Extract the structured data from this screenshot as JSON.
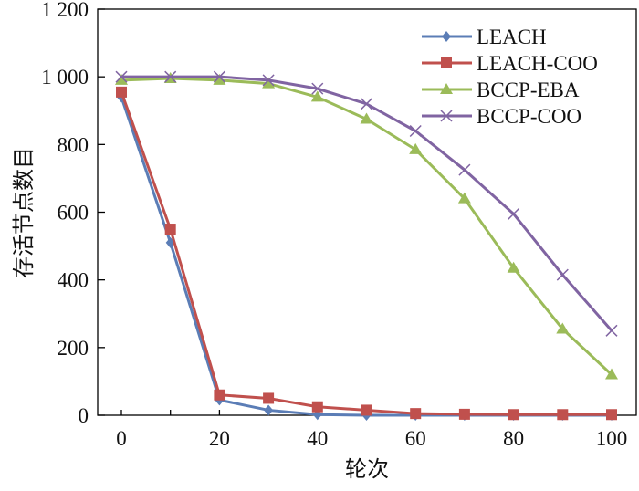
{
  "chart_data": {
    "type": "line",
    "title": "",
    "xlabel": "轮次",
    "ylabel": "存活节点数目",
    "xlim": [
      0,
      100
    ],
    "ylim": [
      0,
      1200
    ],
    "x": [
      0,
      10,
      20,
      30,
      40,
      50,
      60,
      70,
      80,
      90,
      100
    ],
    "xticks": [
      "0",
      "20",
      "40",
      "60",
      "80",
      "100"
    ],
    "yticks": [
      "0",
      "200",
      "400",
      "600",
      "800",
      "1 000",
      "1 200"
    ],
    "legend_position": "top-right",
    "grid": false,
    "series": [
      {
        "name": "LEACH",
        "color": "#5b7db6",
        "marker": "diamond",
        "values": [
          940,
          510,
          45,
          15,
          2,
          0,
          0,
          0,
          0,
          0,
          0
        ]
      },
      {
        "name": "LEACH-COO",
        "color": "#c0504d",
        "marker": "square",
        "values": [
          955,
          550,
          60,
          50,
          25,
          15,
          5,
          3,
          2,
          2,
          2
        ]
      },
      {
        "name": "BCCP-EBA",
        "color": "#9bbb59",
        "marker": "triangle",
        "values": [
          990,
          995,
          990,
          980,
          940,
          875,
          785,
          640,
          435,
          255,
          120
        ]
      },
      {
        "name": "BCCP-COO",
        "color": "#8064a2",
        "marker": "x",
        "values": [
          1000,
          1000,
          1000,
          990,
          965,
          920,
          840,
          725,
          595,
          415,
          250
        ]
      }
    ]
  }
}
